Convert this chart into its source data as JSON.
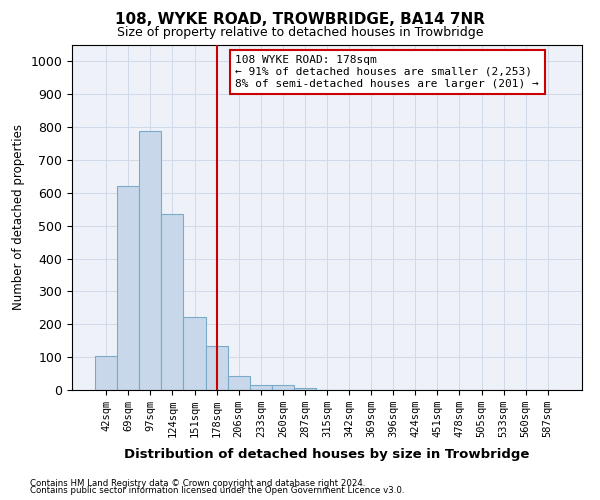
{
  "title1": "108, WYKE ROAD, TROWBRIDGE, BA14 7NR",
  "title2": "Size of property relative to detached houses in Trowbridge",
  "xlabel": "Distribution of detached houses by size in Trowbridge",
  "ylabel": "Number of detached properties",
  "footnote1": "Contains HM Land Registry data © Crown copyright and database right 2024.",
  "footnote2": "Contains public sector information licensed under the Open Government Licence v3.0.",
  "annotation_line1": "108 WYKE ROAD: 178sqm",
  "annotation_line2": "← 91% of detached houses are smaller (2,253)",
  "annotation_line3": "8% of semi-detached houses are larger (201) →",
  "bar_color": "#c8d8ea",
  "bar_edge_color": "#7aaac8",
  "vline_color": "#cc0000",
  "annotation_box_color": "#cc0000",
  "grid_color": "#d0dae8",
  "background_color": "#eef2f8",
  "bin_labels": [
    "42sqm",
    "69sqm",
    "97sqm",
    "124sqm",
    "151sqm",
    "178sqm",
    "206sqm",
    "233sqm",
    "260sqm",
    "287sqm",
    "315sqm",
    "342sqm",
    "369sqm",
    "396sqm",
    "424sqm",
    "451sqm",
    "478sqm",
    "505sqm",
    "533sqm",
    "560sqm",
    "587sqm"
  ],
  "bar_values": [
    102,
    622,
    787,
    537,
    222,
    134,
    42,
    14,
    14,
    7,
    0,
    0,
    0,
    0,
    0,
    0,
    0,
    0,
    0,
    0,
    0
  ],
  "vline_x": 5,
  "ylim": [
    0,
    1050
  ],
  "yticks": [
    0,
    100,
    200,
    300,
    400,
    500,
    600,
    700,
    800,
    900,
    1000
  ]
}
